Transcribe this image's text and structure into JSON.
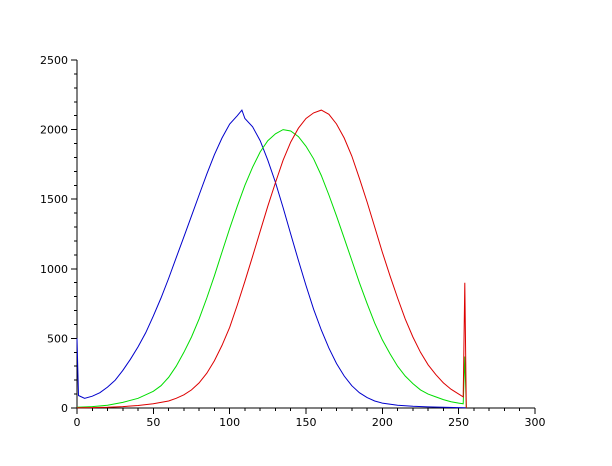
{
  "chart_data": {
    "type": "line",
    "title": "",
    "xlabel": "",
    "ylabel": "",
    "xlim": [
      0,
      300
    ],
    "ylim": [
      0,
      2500
    ],
    "xticks": [
      0,
      50,
      100,
      150,
      200,
      250,
      300
    ],
    "yticks": [
      0,
      500,
      1000,
      1500,
      2000,
      2500
    ],
    "grid": false,
    "legend": "none",
    "series": [
      {
        "color": "#0000cc",
        "points": [
          [
            0,
            500
          ],
          [
            1,
            90
          ],
          [
            5,
            70
          ],
          [
            10,
            85
          ],
          [
            15,
            110
          ],
          [
            20,
            150
          ],
          [
            25,
            200
          ],
          [
            30,
            270
          ],
          [
            35,
            350
          ],
          [
            40,
            440
          ],
          [
            45,
            540
          ],
          [
            50,
            660
          ],
          [
            55,
            790
          ],
          [
            60,
            930
          ],
          [
            65,
            1080
          ],
          [
            70,
            1230
          ],
          [
            75,
            1380
          ],
          [
            80,
            1530
          ],
          [
            85,
            1680
          ],
          [
            90,
            1820
          ],
          [
            95,
            1940
          ],
          [
            100,
            2040
          ],
          [
            105,
            2100
          ],
          [
            108,
            2140
          ],
          [
            110,
            2080
          ],
          [
            115,
            2020
          ],
          [
            120,
            1920
          ],
          [
            125,
            1780
          ],
          [
            130,
            1620
          ],
          [
            135,
            1440
          ],
          [
            140,
            1250
          ],
          [
            145,
            1060
          ],
          [
            150,
            880
          ],
          [
            155,
            710
          ],
          [
            160,
            560
          ],
          [
            165,
            430
          ],
          [
            170,
            320
          ],
          [
            175,
            230
          ],
          [
            180,
            160
          ],
          [
            185,
            110
          ],
          [
            190,
            75
          ],
          [
            195,
            50
          ],
          [
            200,
            35
          ],
          [
            210,
            20
          ],
          [
            220,
            12
          ],
          [
            230,
            8
          ],
          [
            240,
            5
          ],
          [
            250,
            3
          ],
          [
            255,
            2
          ]
        ]
      },
      {
        "color": "#00dd00",
        "points": [
          [
            0,
            5
          ],
          [
            10,
            10
          ],
          [
            20,
            20
          ],
          [
            30,
            40
          ],
          [
            40,
            70
          ],
          [
            50,
            120
          ],
          [
            55,
            160
          ],
          [
            60,
            220
          ],
          [
            65,
            300
          ],
          [
            70,
            400
          ],
          [
            75,
            510
          ],
          [
            80,
            640
          ],
          [
            85,
            790
          ],
          [
            90,
            950
          ],
          [
            95,
            1120
          ],
          [
            100,
            1290
          ],
          [
            105,
            1450
          ],
          [
            110,
            1600
          ],
          [
            115,
            1730
          ],
          [
            120,
            1840
          ],
          [
            125,
            1920
          ],
          [
            130,
            1970
          ],
          [
            135,
            2000
          ],
          [
            140,
            1990
          ],
          [
            145,
            1950
          ],
          [
            150,
            1880
          ],
          [
            155,
            1790
          ],
          [
            160,
            1670
          ],
          [
            165,
            1530
          ],
          [
            170,
            1380
          ],
          [
            175,
            1220
          ],
          [
            180,
            1060
          ],
          [
            185,
            900
          ],
          [
            190,
            750
          ],
          [
            195,
            610
          ],
          [
            200,
            490
          ],
          [
            205,
            390
          ],
          [
            210,
            300
          ],
          [
            215,
            230
          ],
          [
            220,
            175
          ],
          [
            225,
            130
          ],
          [
            230,
            100
          ],
          [
            235,
            80
          ],
          [
            240,
            60
          ],
          [
            245,
            45
          ],
          [
            250,
            35
          ],
          [
            253,
            30
          ],
          [
            254,
            370
          ],
          [
            255,
            0
          ]
        ]
      },
      {
        "color": "#dd0000",
        "points": [
          [
            0,
            2
          ],
          [
            10,
            3
          ],
          [
            20,
            5
          ],
          [
            30,
            10
          ],
          [
            40,
            18
          ],
          [
            50,
            30
          ],
          [
            60,
            50
          ],
          [
            65,
            70
          ],
          [
            70,
            95
          ],
          [
            75,
            130
          ],
          [
            80,
            180
          ],
          [
            85,
            250
          ],
          [
            90,
            340
          ],
          [
            95,
            450
          ],
          [
            100,
            580
          ],
          [
            105,
            740
          ],
          [
            110,
            910
          ],
          [
            115,
            1090
          ],
          [
            120,
            1270
          ],
          [
            125,
            1450
          ],
          [
            130,
            1620
          ],
          [
            135,
            1780
          ],
          [
            140,
            1910
          ],
          [
            145,
            2010
          ],
          [
            150,
            2080
          ],
          [
            155,
            2120
          ],
          [
            160,
            2140
          ],
          [
            165,
            2110
          ],
          [
            170,
            2040
          ],
          [
            175,
            1940
          ],
          [
            180,
            1810
          ],
          [
            185,
            1650
          ],
          [
            190,
            1480
          ],
          [
            195,
            1300
          ],
          [
            200,
            1120
          ],
          [
            205,
            950
          ],
          [
            210,
            790
          ],
          [
            215,
            640
          ],
          [
            220,
            510
          ],
          [
            225,
            400
          ],
          [
            230,
            310
          ],
          [
            235,
            240
          ],
          [
            240,
            180
          ],
          [
            245,
            135
          ],
          [
            250,
            100
          ],
          [
            253,
            80
          ],
          [
            254,
            900
          ],
          [
            255,
            0
          ]
        ]
      }
    ]
  }
}
